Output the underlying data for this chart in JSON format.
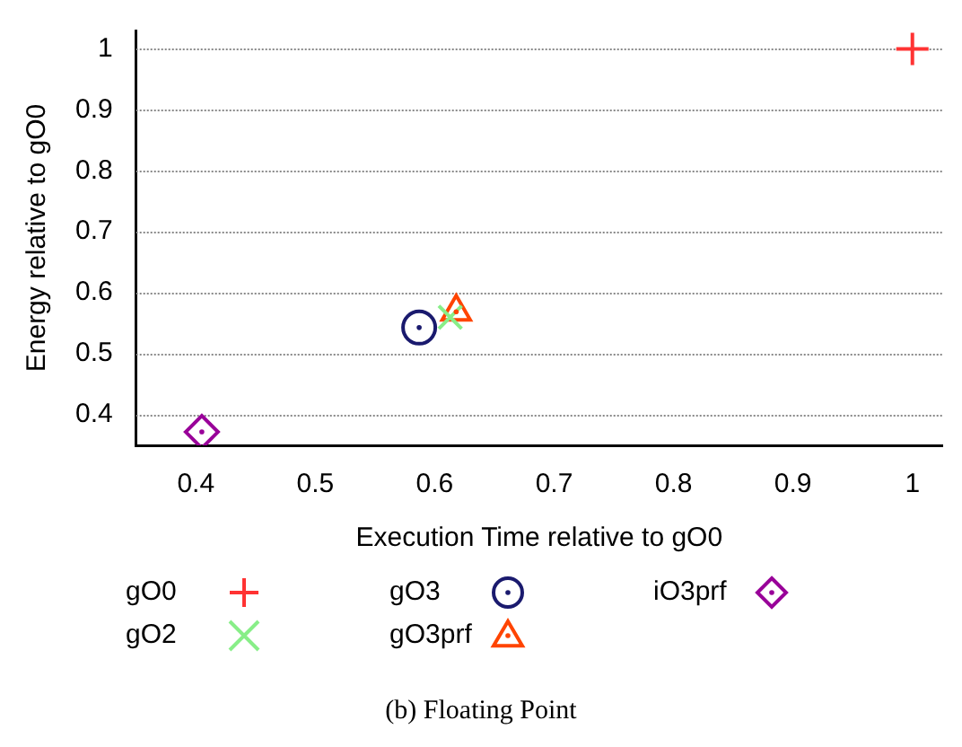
{
  "chart_data": {
    "type": "scatter",
    "xlabel": "Execution Time relative to gO0",
    "ylabel": "Energy relative to gO0",
    "series": [
      {
        "name": "gO0",
        "color": "#ff3333",
        "marker": "plus",
        "x": [
          1
        ],
        "values": [
          1
        ]
      },
      {
        "name": "gO2",
        "color": "#88ee88",
        "marker": "cross",
        "x": [
          0.613
        ],
        "values": [
          0.56
        ]
      },
      {
        "name": "gO3",
        "color": "#1a1a6e",
        "marker": "circle",
        "x": [
          0.587
        ],
        "values": [
          0.543
        ]
      },
      {
        "name": "gO3prf",
        "color": "#ff4400",
        "marker": "triangle",
        "x": [
          0.618
        ],
        "values": [
          0.569
        ]
      },
      {
        "name": "iO3prf",
        "color": "#990099",
        "marker": "diamond",
        "x": [
          0.405
        ],
        "values": [
          0.372
        ]
      }
    ],
    "xlim": [
      0.35,
      1.025
    ],
    "xticks": [
      0.4,
      0.5,
      0.6,
      0.7,
      0.8,
      0.9,
      1
    ],
    "ylim": [
      0.35,
      1.03
    ],
    "yticks": [
      0.4,
      0.5,
      0.6,
      0.7,
      0.8,
      0.9,
      1
    ],
    "grid": "y",
    "legend": "bottom",
    "annotations": [
      "(b) Floating Point"
    ]
  }
}
